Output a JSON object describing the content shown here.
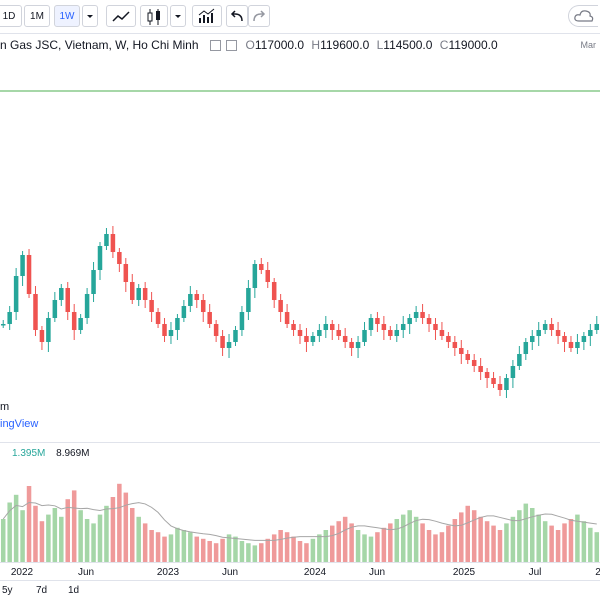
{
  "toolbar": {
    "intervals": [
      "1D",
      "1M",
      "1W"
    ],
    "active_interval": "1W",
    "icons": [
      "dropdown-icon",
      "line-chart-icon",
      "candles-icon",
      "dropdown-icon",
      "indicators-icon",
      "undo-icon",
      "redo-icon",
      "cloud-icon"
    ]
  },
  "legend": {
    "symbol": "n Gas JSC, Vietnam, W, Ho Chi Minh",
    "open_label": "O",
    "open": "117000.0",
    "high_label": "H",
    "high": "119600.0",
    "low_label": "L",
    "low": "114500.0",
    "close_label": "C",
    "close": "119000.0",
    "side_note": "Mar"
  },
  "watermark": {
    "line1": "m",
    "line2": "ingView"
  },
  "volume_legend": {
    "value1": "1.395M",
    "value2": "8.969M"
  },
  "axis": {
    "labels": [
      "2022",
      "Jun",
      "2023",
      "Jun",
      "2024",
      "Jun",
      "2025",
      "Jul",
      "2"
    ]
  },
  "bottombar": {
    "items": [
      "5y",
      "7d",
      "1d"
    ]
  },
  "colors": {
    "up": "#26a69a",
    "down": "#ef5350",
    "up_vol": "#a5d6a7",
    "down_vol": "#ef9a9a",
    "ma": "#a6a6a6",
    "hline": "#4caf50"
  },
  "chart_data": {
    "type": "candlestick",
    "x_labels": [
      "2022",
      "Jun",
      "2023",
      "Jun",
      "2024",
      "Jun",
      "2025",
      "Jul"
    ],
    "last_bar": {
      "open": 117000.0,
      "high": 119600.0,
      "low": 114500.0,
      "close": 119000.0
    },
    "volume": {
      "current": "1.395M",
      "ma": "8.969M"
    },
    "price_series_relative": [
      62,
      66,
      78,
      85,
      72,
      60,
      56,
      64,
      70,
      74,
      66,
      60,
      64,
      72,
      80,
      88,
      92,
      86,
      82,
      76,
      70,
      74,
      70,
      66,
      62,
      58,
      60,
      64,
      68,
      72,
      70,
      66,
      62,
      58,
      54,
      56,
      60,
      66,
      74,
      82,
      80,
      76,
      70,
      66,
      62,
      60,
      58,
      56,
      58,
      60,
      62,
      60,
      58,
      56,
      54,
      56,
      60,
      64,
      62,
      60,
      58,
      60,
      62,
      64,
      66,
      64,
      62,
      60,
      58,
      56,
      54,
      52,
      50,
      48,
      46,
      44,
      42,
      40,
      44,
      48,
      52,
      56,
      58,
      60,
      62,
      60,
      58,
      56,
      54,
      56,
      58,
      60,
      62
    ],
    "volume_series_relative": [
      40,
      55,
      62,
      48,
      70,
      52,
      38,
      44,
      50,
      42,
      58,
      66,
      48,
      40,
      36,
      44,
      52,
      60,
      72,
      64,
      50,
      42,
      36,
      30,
      28,
      24,
      26,
      32,
      30,
      28,
      24,
      22,
      20,
      18,
      22,
      26,
      24,
      20,
      18,
      16,
      18,
      22,
      26,
      30,
      28,
      24,
      20,
      18,
      22,
      26,
      30,
      34,
      38,
      42,
      36,
      30,
      26,
      24,
      28,
      32,
      36,
      40,
      44,
      48,
      42,
      36,
      30,
      26,
      28,
      34,
      40,
      46,
      52,
      48,
      42,
      38,
      34,
      30,
      36,
      42,
      48,
      54,
      50,
      44,
      38,
      34,
      30,
      36,
      40,
      44,
      38,
      32,
      28
    ]
  }
}
